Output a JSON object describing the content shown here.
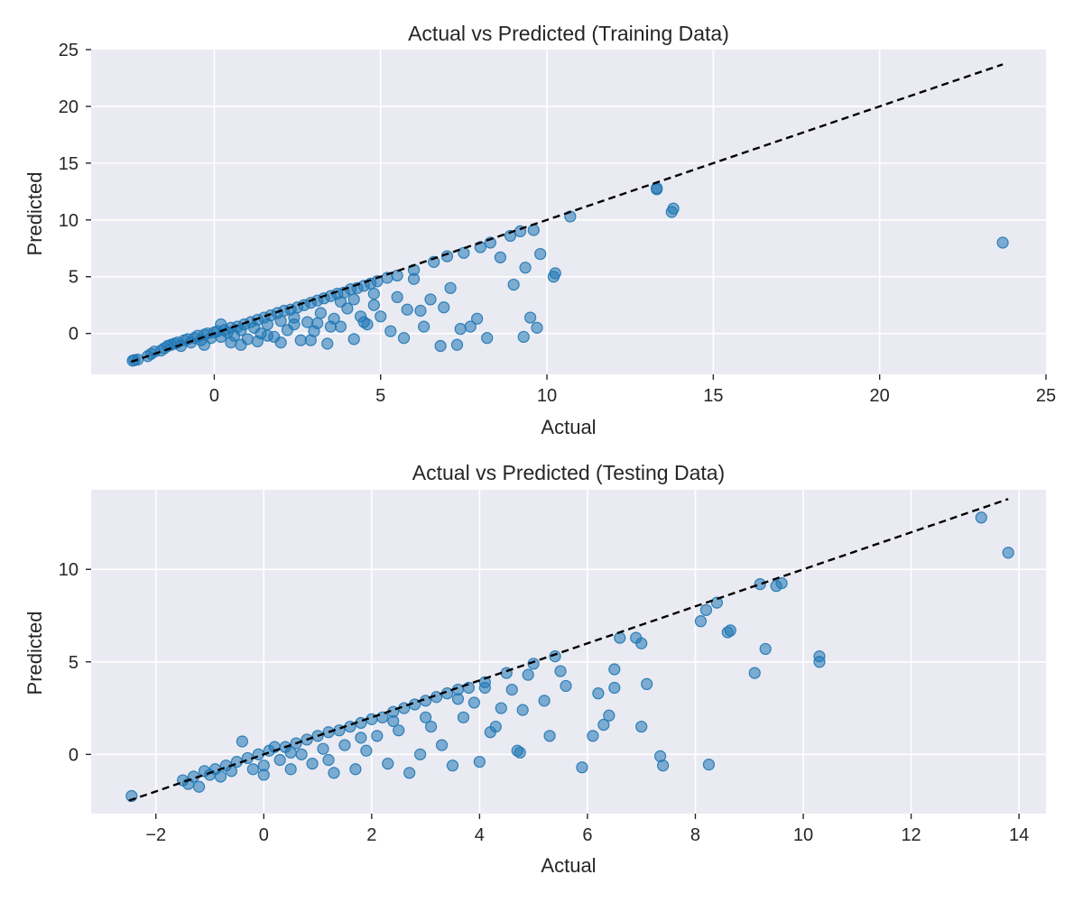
{
  "colors": {
    "point": "#1f77b4",
    "panel": "#eaeaf2",
    "reference_line": "#000000"
  },
  "chart_data": [
    {
      "type": "scatter",
      "title": "Actual vs Predicted (Training Data)",
      "xlabel": "Actual",
      "ylabel": "Predicted",
      "xlim": [
        -3.7,
        25.0
      ],
      "ylim": [
        -3.6,
        25.0
      ],
      "xticks": [
        0,
        5,
        10,
        15,
        20,
        25
      ],
      "yticks": [
        0,
        5,
        10,
        15,
        20,
        25
      ],
      "grid": true,
      "reference_line": {
        "style": "dashed",
        "x": [
          -2.5,
          23.7
        ],
        "y": [
          -2.5,
          23.7
        ]
      },
      "points": [
        [
          -2.45,
          -2.4
        ],
        [
          -2.4,
          -2.35
        ],
        [
          -2.3,
          -2.3
        ],
        [
          -2.0,
          -2.0
        ],
        [
          -1.9,
          -1.8
        ],
        [
          -1.8,
          -1.6
        ],
        [
          -1.6,
          -1.5
        ],
        [
          -1.5,
          -1.3
        ],
        [
          -1.4,
          -1.1
        ],
        [
          -1.3,
          -1.0
        ],
        [
          -1.2,
          -0.9
        ],
        [
          -1.1,
          -0.8
        ],
        [
          -1.0,
          -1.1
        ],
        [
          -0.9,
          -0.6
        ],
        [
          -0.8,
          -0.5
        ],
        [
          -0.7,
          -0.8
        ],
        [
          -0.6,
          -0.4
        ],
        [
          -0.5,
          -0.2
        ],
        [
          -0.4,
          -0.6
        ],
        [
          -0.3,
          -0.1
        ],
        [
          -0.2,
          0.0
        ],
        [
          -0.1,
          -0.4
        ],
        [
          0.0,
          0.1
        ],
        [
          0.1,
          0.2
        ],
        [
          0.2,
          -0.3
        ],
        [
          0.3,
          0.3
        ],
        [
          0.4,
          0.1
        ],
        [
          0.5,
          0.5
        ],
        [
          0.6,
          -0.2
        ],
        [
          0.7,
          0.6
        ],
        [
          0.8,
          0.3
        ],
        [
          0.9,
          0.8
        ],
        [
          1.0,
          -0.5
        ],
        [
          1.1,
          1.0
        ],
        [
          1.2,
          0.5
        ],
        [
          1.3,
          1.2
        ],
        [
          1.4,
          0.0
        ],
        [
          1.5,
          1.4
        ],
        [
          1.6,
          0.8
        ],
        [
          1.7,
          1.6
        ],
        [
          1.8,
          -0.3
        ],
        [
          1.9,
          1.8
        ],
        [
          2.0,
          1.1
        ],
        [
          2.1,
          2.0
        ],
        [
          2.2,
          0.3
        ],
        [
          2.3,
          2.1
        ],
        [
          2.4,
          1.4
        ],
        [
          2.5,
          2.3
        ],
        [
          2.6,
          -0.6
        ],
        [
          2.7,
          2.5
        ],
        [
          2.8,
          1.0
        ],
        [
          2.9,
          2.7
        ],
        [
          3.0,
          0.2
        ],
        [
          3.1,
          2.9
        ],
        [
          3.2,
          1.8
        ],
        [
          3.3,
          3.1
        ],
        [
          3.4,
          -0.9
        ],
        [
          3.5,
          3.3
        ],
        [
          3.6,
          1.3
        ],
        [
          3.7,
          3.5
        ],
        [
          3.8,
          0.6
        ],
        [
          3.9,
          3.6
        ],
        [
          4.0,
          2.2
        ],
        [
          4.1,
          3.9
        ],
        [
          4.2,
          -0.5
        ],
        [
          4.3,
          4.0
        ],
        [
          4.4,
          1.5
        ],
        [
          4.5,
          4.2
        ],
        [
          4.6,
          0.8
        ],
        [
          4.7,
          4.4
        ],
        [
          4.8,
          2.5
        ],
        [
          4.9,
          4.6
        ],
        [
          5.0,
          1.5
        ],
        [
          5.2,
          4.9
        ],
        [
          5.3,
          0.2
        ],
        [
          5.5,
          5.1
        ],
        [
          5.7,
          -0.4
        ],
        [
          5.8,
          2.1
        ],
        [
          6.0,
          5.6
        ],
        [
          6.2,
          2.0
        ],
        [
          6.3,
          0.6
        ],
        [
          6.5,
          3.0
        ],
        [
          6.6,
          6.3
        ],
        [
          6.8,
          -1.1
        ],
        [
          6.9,
          2.3
        ],
        [
          7.0,
          6.8
        ],
        [
          7.1,
          4.0
        ],
        [
          7.3,
          -1.0
        ],
        [
          7.4,
          0.4
        ],
        [
          7.5,
          7.1
        ],
        [
          7.7,
          0.6
        ],
        [
          7.9,
          1.3
        ],
        [
          8.0,
          7.6
        ],
        [
          8.2,
          -0.4
        ],
        [
          8.3,
          8.0
        ],
        [
          8.6,
          6.7
        ],
        [
          8.9,
          8.6
        ],
        [
          9.0,
          4.3
        ],
        [
          9.2,
          9.0
        ],
        [
          9.3,
          -0.3
        ],
        [
          9.35,
          5.8
        ],
        [
          9.5,
          1.4
        ],
        [
          9.6,
          9.1
        ],
        [
          9.7,
          0.5
        ],
        [
          9.8,
          7.0
        ],
        [
          10.2,
          5.0
        ],
        [
          10.25,
          5.3
        ],
        [
          10.7,
          10.3
        ],
        [
          13.3,
          12.7
        ],
        [
          13.3,
          12.8
        ],
        [
          13.75,
          10.7
        ],
        [
          13.8,
          11.0
        ],
        [
          23.7,
          8.0
        ],
        [
          0.2,
          0.8
        ],
        [
          0.5,
          -0.8
        ],
        [
          1.3,
          -0.7
        ],
        [
          2.0,
          -0.8
        ],
        [
          2.9,
          -0.6
        ],
        [
          3.5,
          0.6
        ],
        [
          4.5,
          1.0
        ],
        [
          -0.3,
          -1.0
        ],
        [
          0.8,
          -1.0
        ],
        [
          1.6,
          -0.2
        ],
        [
          2.4,
          0.8
        ],
        [
          3.1,
          0.9
        ],
        [
          3.8,
          2.8
        ],
        [
          4.2,
          3.0
        ],
        [
          4.8,
          3.5
        ],
        [
          5.5,
          3.2
        ],
        [
          6.0,
          4.8
        ]
      ]
    },
    {
      "type": "scatter",
      "title": "Actual vs Predicted (Testing Data)",
      "xlabel": "Actual",
      "ylabel": "Predicted",
      "xlim": [
        -3.2,
        14.5
      ],
      "ylim": [
        -3.2,
        14.3
      ],
      "xticks": [
        -2,
        0,
        2,
        4,
        6,
        8,
        10,
        12,
        14
      ],
      "yticks": [
        0,
        5,
        10
      ],
      "tick_labels_x": [
        "−2",
        "0",
        "2",
        "4",
        "6",
        "8",
        "10",
        "12",
        "14"
      ],
      "grid": true,
      "reference_line": {
        "style": "dashed",
        "x": [
          -2.5,
          13.8
        ],
        "y": [
          -2.5,
          13.8
        ]
      },
      "points": [
        [
          -2.45,
          -2.25
        ],
        [
          -1.5,
          -1.4
        ],
        [
          -1.4,
          -1.6
        ],
        [
          -1.3,
          -1.2
        ],
        [
          -1.2,
          -1.75
        ],
        [
          -1.1,
          -0.9
        ],
        [
          -1.0,
          -1.1
        ],
        [
          -0.9,
          -0.8
        ],
        [
          -0.8,
          -1.2
        ],
        [
          -0.7,
          -0.6
        ],
        [
          -0.6,
          -0.9
        ],
        [
          -0.5,
          -0.4
        ],
        [
          -0.4,
          0.7
        ],
        [
          -0.3,
          -0.2
        ],
        [
          -0.2,
          -0.8
        ],
        [
          -0.1,
          0.0
        ],
        [
          0.0,
          -0.6
        ],
        [
          0.1,
          0.2
        ],
        [
          0.2,
          0.4
        ],
        [
          0.3,
          -0.3
        ],
        [
          0.4,
          0.4
        ],
        [
          0.5,
          -0.8
        ],
        [
          0.6,
          0.6
        ],
        [
          0.7,
          0.0
        ],
        [
          0.8,
          0.8
        ],
        [
          0.9,
          -0.5
        ],
        [
          1.0,
          1.0
        ],
        [
          1.1,
          0.3
        ],
        [
          1.2,
          1.2
        ],
        [
          1.3,
          -1.0
        ],
        [
          1.4,
          1.3
        ],
        [
          1.5,
          0.5
        ],
        [
          1.6,
          1.5
        ],
        [
          1.7,
          -0.8
        ],
        [
          1.8,
          1.7
        ],
        [
          1.9,
          0.2
        ],
        [
          2.0,
          1.9
        ],
        [
          2.1,
          1.0
        ],
        [
          2.2,
          2.0
        ],
        [
          2.3,
          -0.5
        ],
        [
          2.4,
          2.3
        ],
        [
          2.5,
          1.3
        ],
        [
          2.6,
          2.5
        ],
        [
          2.7,
          -1.0
        ],
        [
          2.8,
          2.7
        ],
        [
          2.9,
          0.0
        ],
        [
          3.0,
          2.9
        ],
        [
          3.1,
          1.5
        ],
        [
          3.2,
          3.1
        ],
        [
          3.3,
          0.5
        ],
        [
          3.4,
          3.3
        ],
        [
          3.5,
          -0.6
        ],
        [
          3.6,
          3.5
        ],
        [
          3.7,
          2.0
        ],
        [
          3.8,
          3.6
        ],
        [
          3.9,
          2.8
        ],
        [
          4.0,
          -0.4
        ],
        [
          4.1,
          3.9
        ],
        [
          4.2,
          1.2
        ],
        [
          4.3,
          1.5
        ],
        [
          4.4,
          2.5
        ],
        [
          4.5,
          4.4
        ],
        [
          4.6,
          3.5
        ],
        [
          4.7,
          0.2
        ],
        [
          4.75,
          0.1
        ],
        [
          4.8,
          2.4
        ],
        [
          5.0,
          4.9
        ],
        [
          5.2,
          2.9
        ],
        [
          5.3,
          1.0
        ],
        [
          5.4,
          5.3
        ],
        [
          5.5,
          4.5
        ],
        [
          5.6,
          3.7
        ],
        [
          5.9,
          -0.7
        ],
        [
          6.1,
          1.0
        ],
        [
          6.2,
          3.3
        ],
        [
          6.3,
          1.6
        ],
        [
          6.4,
          2.1
        ],
        [
          6.5,
          3.6
        ],
        [
          6.5,
          4.6
        ],
        [
          6.6,
          6.3
        ],
        [
          6.9,
          6.3
        ],
        [
          7.0,
          1.5
        ],
        [
          7.0,
          6.0
        ],
        [
          7.1,
          3.8
        ],
        [
          7.35,
          -0.1
        ],
        [
          7.4,
          -0.6
        ],
        [
          8.1,
          7.2
        ],
        [
          8.2,
          7.8
        ],
        [
          8.25,
          -0.55
        ],
        [
          8.4,
          8.2
        ],
        [
          8.6,
          6.6
        ],
        [
          8.65,
          6.7
        ],
        [
          9.1,
          4.4
        ],
        [
          9.2,
          9.2
        ],
        [
          9.3,
          5.7
        ],
        [
          9.5,
          9.1
        ],
        [
          9.6,
          9.25
        ],
        [
          10.3,
          5.0
        ],
        [
          10.3,
          5.3
        ],
        [
          13.3,
          12.8
        ],
        [
          13.8,
          10.9
        ],
        [
          0.0,
          -1.1
        ],
        [
          0.5,
          0.1
        ],
        [
          1.2,
          -0.3
        ],
        [
          1.8,
          0.9
        ],
        [
          2.4,
          1.8
        ],
        [
          3.0,
          2.0
        ],
        [
          3.6,
          3.0
        ],
        [
          4.1,
          3.6
        ],
        [
          4.9,
          4.3
        ]
      ]
    }
  ]
}
